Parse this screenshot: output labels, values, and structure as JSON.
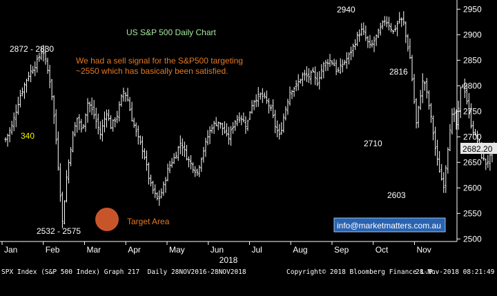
{
  "chart_data": {
    "type": "ohlc",
    "title": "US S&P 500 Daily Chart",
    "x_year_label": "2018",
    "months": [
      "Jan",
      "Feb",
      "Mar",
      "Apr",
      "May",
      "Jun",
      "Jul",
      "Aug",
      "Sep",
      "Oct",
      "Nov"
    ],
    "y_ticks": [
      2500,
      2550,
      2600,
      2650,
      2700,
      2750,
      2800,
      2850,
      2900,
      2950
    ],
    "ylim": [
      2495,
      2968
    ],
    "xlim_months": [
      0,
      11.08
    ],
    "last_price": "2682.20",
    "series": [
      {
        "name": "SPX Index",
        "close_path": [
          [
            0.0,
            2695
          ],
          [
            0.15,
            2720
          ],
          [
            0.35,
            2780
          ],
          [
            0.55,
            2820
          ],
          [
            0.75,
            2845
          ],
          [
            0.9,
            2872
          ],
          [
            1.0,
            2838
          ],
          [
            1.1,
            2800
          ],
          [
            1.2,
            2720
          ],
          [
            1.3,
            2620
          ],
          [
            1.38,
            2532
          ],
          [
            1.48,
            2620
          ],
          [
            1.62,
            2700
          ],
          [
            1.75,
            2740
          ],
          [
            1.85,
            2710
          ],
          [
            2.0,
            2770
          ],
          [
            2.15,
            2742
          ],
          [
            2.3,
            2705
          ],
          [
            2.45,
            2750
          ],
          [
            2.55,
            2720
          ],
          [
            2.7,
            2740
          ],
          [
            2.85,
            2790
          ],
          [
            2.95,
            2778
          ],
          [
            3.05,
            2740
          ],
          [
            3.2,
            2700
          ],
          [
            3.35,
            2670
          ],
          [
            3.5,
            2610
          ],
          [
            3.6,
            2590
          ],
          [
            3.7,
            2575
          ],
          [
            3.82,
            2600
          ],
          [
            3.95,
            2640
          ],
          [
            4.1,
            2660
          ],
          [
            4.25,
            2690
          ],
          [
            4.4,
            2660
          ],
          [
            4.55,
            2640
          ],
          [
            4.65,
            2630
          ],
          [
            4.75,
            2660
          ],
          [
            4.9,
            2700
          ],
          [
            5.0,
            2720
          ],
          [
            5.15,
            2730
          ],
          [
            5.3,
            2712
          ],
          [
            5.4,
            2695
          ],
          [
            5.55,
            2730
          ],
          [
            5.7,
            2740
          ],
          [
            5.85,
            2720
          ],
          [
            5.95,
            2760
          ],
          [
            6.05,
            2775
          ],
          [
            6.2,
            2782
          ],
          [
            6.35,
            2768
          ],
          [
            6.45,
            2750
          ],
          [
            6.55,
            2718
          ],
          [
            6.65,
            2700
          ],
          [
            6.75,
            2742
          ],
          [
            6.9,
            2790
          ],
          [
            7.05,
            2800
          ],
          [
            7.2,
            2820
          ],
          [
            7.35,
            2818
          ],
          [
            7.45,
            2825
          ],
          [
            7.55,
            2805
          ],
          [
            7.7,
            2840
          ],
          [
            7.85,
            2850
          ],
          [
            7.95,
            2845
          ],
          [
            8.05,
            2825
          ],
          [
            8.15,
            2840
          ],
          [
            8.3,
            2855
          ],
          [
            8.45,
            2880
          ],
          [
            8.55,
            2900
          ],
          [
            8.65,
            2910
          ],
          [
            8.75,
            2890
          ],
          [
            8.85,
            2875
          ],
          [
            8.95,
            2890
          ],
          [
            9.05,
            2905
          ],
          [
            9.2,
            2930
          ],
          [
            9.3,
            2920
          ],
          [
            9.4,
            2905
          ],
          [
            9.55,
            2930
          ],
          [
            9.65,
            2925
          ],
          [
            9.72,
            2890
          ],
          [
            9.8,
            2860
          ],
          [
            9.9,
            2780
          ],
          [
            9.95,
            2720
          ],
          [
            10.02,
            2760
          ],
          [
            10.1,
            2805
          ],
          [
            10.15,
            2812
          ],
          [
            10.25,
            2770
          ],
          [
            10.35,
            2720
          ],
          [
            10.45,
            2660
          ],
          [
            10.55,
            2625
          ],
          [
            10.62,
            2603
          ],
          [
            10.7,
            2660
          ],
          [
            10.78,
            2720
          ],
          [
            10.85,
            2750
          ],
          [
            10.95,
            2718
          ],
          [
            11.02,
            2790
          ],
          [
            11.1,
            2805
          ],
          [
            11.2,
            2765
          ],
          [
            11.3,
            2720
          ],
          [
            11.4,
            2700
          ],
          [
            11.5,
            2680
          ],
          [
            11.55,
            2660
          ],
          [
            11.65,
            2648
          ],
          [
            11.75,
            2660
          ],
          [
            11.85,
            2682
          ]
        ]
      }
    ],
    "annotations": {
      "a_2872_2830": "2872 - 2830",
      "a_2532_2575": "2532 - 2575",
      "a_2940": "2940",
      "a_2816": "2816",
      "a_2710": "2710",
      "a_2603": "2603",
      "a_340": "340",
      "note_line1": "We had a sell signal for the S&P500 targeting",
      "note_line2": "~2550 which has basically been satisfied.",
      "target_label": "Target Area",
      "contact": "info@marketmatters.com.au"
    }
  },
  "footer": {
    "left": "SPX Index (S&P 500 Index) Graph 217  Daily 28NOV2016-28NOV2018",
    "copyright": "Copyright© 2018 Bloomberg Finance L.P.",
    "timestamp": "28-Nov-2018 08:21:49"
  },
  "colors": {
    "background": "#000000",
    "bars": "#ffffff",
    "title": "#a6e8a0",
    "note": "#e8781e",
    "label_yellow": "#f2f200",
    "target_fill": "#c8552a",
    "contact_box": "#2a63b0"
  }
}
